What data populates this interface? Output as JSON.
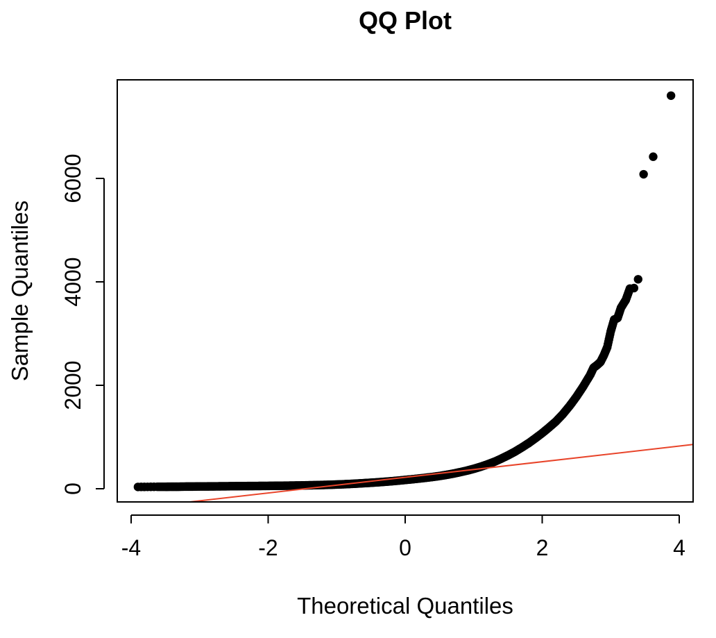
{
  "chart_data": {
    "type": "scatter",
    "title": "QQ Plot",
    "xlabel": "Theoretical Quantiles",
    "ylabel": "Sample Quantiles",
    "xlim": [
      -4,
      4
    ],
    "ylim": [
      0,
      7000
    ],
    "x_ticks": [
      -4,
      -2,
      0,
      2,
      4
    ],
    "x_tick_labels": [
      "-4",
      "-2",
      "0",
      "2",
      "4"
    ],
    "y_ticks": [
      0,
      2000,
      4000,
      6000
    ],
    "y_tick_labels": [
      "0",
      "2000",
      "4000",
      "6000"
    ],
    "grid": false,
    "legend": "none",
    "series": [
      {
        "kind": "points",
        "color": "#000000",
        "points": [
          [
            -3.9,
            35
          ],
          [
            -3.62,
            38
          ],
          [
            -3.5,
            38
          ],
          [
            -3.42,
            40
          ],
          [
            -3.36,
            40
          ],
          [
            -3.3,
            40
          ],
          [
            -3.2,
            42
          ],
          [
            -3.1,
            42
          ],
          [
            -3.0,
            45
          ],
          [
            -2.9,
            45
          ],
          [
            -2.8,
            46
          ],
          [
            -2.7,
            47
          ],
          [
            -2.6,
            48
          ],
          [
            -2.5,
            50
          ],
          [
            -2.4,
            51
          ],
          [
            -2.3,
            52
          ],
          [
            -2.2,
            53
          ],
          [
            -2.1,
            54
          ],
          [
            -2.0,
            55
          ],
          [
            -1.9,
            57
          ],
          [
            -1.8,
            58
          ],
          [
            -1.7,
            60
          ],
          [
            -1.6,
            62
          ],
          [
            -1.5,
            64
          ],
          [
            -1.4,
            67
          ],
          [
            -1.3,
            70
          ],
          [
            -1.2,
            73
          ],
          [
            -1.1,
            77
          ],
          [
            -1.0,
            82
          ],
          [
            -0.9,
            87
          ],
          [
            -0.8,
            93
          ],
          [
            -0.7,
            100
          ],
          [
            -0.6,
            108
          ],
          [
            -0.5,
            116
          ],
          [
            -0.4,
            125
          ],
          [
            -0.3,
            135
          ],
          [
            -0.2,
            145
          ],
          [
            -0.1,
            157
          ],
          [
            0.0,
            170
          ],
          [
            0.1,
            183
          ],
          [
            0.2,
            197
          ],
          [
            0.3,
            212
          ],
          [
            0.4,
            228
          ],
          [
            0.5,
            246
          ],
          [
            0.6,
            268
          ],
          [
            0.7,
            292
          ],
          [
            0.8,
            320
          ],
          [
            0.9,
            350
          ],
          [
            1.0,
            385
          ],
          [
            1.1,
            425
          ],
          [
            1.2,
            470
          ],
          [
            1.3,
            520
          ],
          [
            1.4,
            580
          ],
          [
            1.5,
            645
          ],
          [
            1.6,
            715
          ],
          [
            1.7,
            795
          ],
          [
            1.8,
            880
          ],
          [
            1.9,
            975
          ],
          [
            2.0,
            1075
          ],
          [
            2.1,
            1185
          ],
          [
            2.2,
            1300
          ],
          [
            2.3,
            1440
          ],
          [
            2.4,
            1600
          ],
          [
            2.5,
            1780
          ],
          [
            2.6,
            1980
          ],
          [
            2.7,
            2200
          ],
          [
            2.75,
            2340
          ],
          [
            2.8,
            2390
          ],
          [
            2.85,
            2450
          ],
          [
            2.9,
            2580
          ],
          [
            2.95,
            2740
          ],
          [
            3.0,
            3040
          ],
          [
            3.05,
            3270
          ],
          [
            3.1,
            3300
          ],
          [
            3.15,
            3500
          ],
          [
            3.22,
            3650
          ],
          [
            3.28,
            3870
          ],
          [
            3.34,
            3880
          ],
          [
            3.4,
            4050
          ],
          [
            3.48,
            6080
          ],
          [
            3.62,
            6420
          ],
          [
            3.88,
            7600
          ]
        ]
      },
      {
        "kind": "line",
        "color": "#e8442a",
        "points": [
          [
            -4.2,
            -415
          ],
          [
            4.2,
            855
          ]
        ]
      }
    ]
  }
}
